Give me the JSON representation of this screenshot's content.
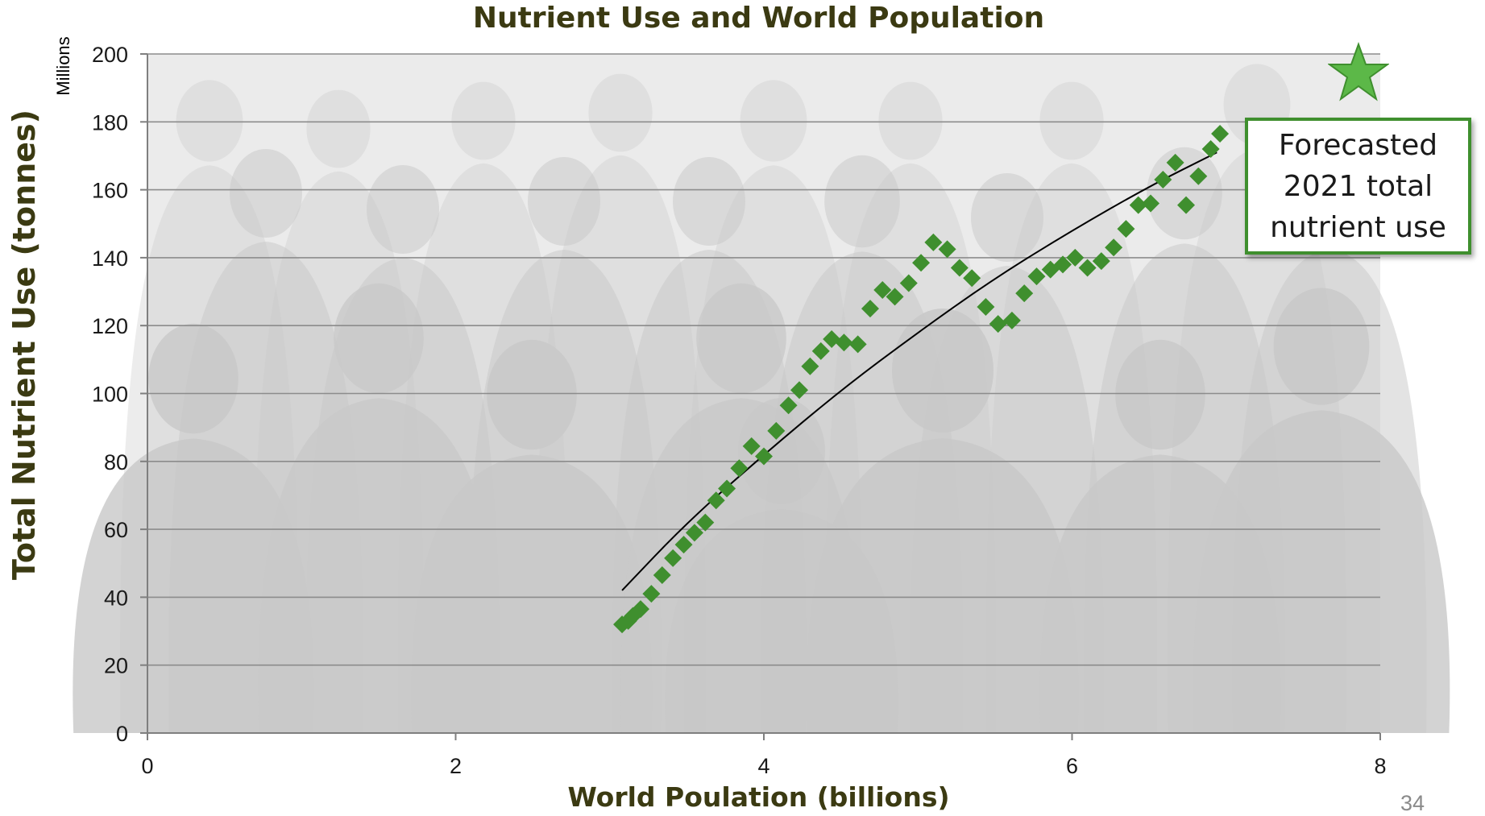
{
  "page": {
    "page_number": "34"
  },
  "callout": {
    "lines": [
      "Forecasted",
      "2021 total",
      "nutrient use"
    ]
  },
  "icons": {
    "callout_marker": "star-icon",
    "star_fill": "#5cb848",
    "star_stroke": "#3f8f2e"
  },
  "colors": {
    "marker": "#3f8f2e",
    "trendline": "#000000",
    "title_text": "#3b3a12",
    "gridline": "#8c8c8c",
    "background_silhouettes": "#c8c8c8"
  },
  "chart_data": {
    "type": "scatter",
    "title": "Nutrient Use and World Population",
    "xlabel": "World Poulation (billions)",
    "ylabel": "Total Nutrient Use (tonnes)",
    "y_units": "Millions",
    "xlim": [
      0,
      8
    ],
    "ylim": [
      0,
      200
    ],
    "x_ticks": [
      0,
      2,
      4,
      6,
      8
    ],
    "y_ticks": [
      0,
      20,
      40,
      60,
      80,
      100,
      120,
      140,
      160,
      180,
      200
    ],
    "grid": "horizontal",
    "marker": "diamond",
    "series": [
      {
        "x": [
          3.08,
          3.12,
          3.15,
          3.2,
          3.27,
          3.34,
          3.41,
          3.48,
          3.55,
          3.62,
          3.69,
          3.76,
          3.84,
          3.92,
          4.0,
          4.08,
          4.16,
          4.23,
          4.3,
          4.37,
          4.44,
          4.52,
          4.61,
          4.69,
          4.77,
          4.85,
          4.94,
          5.02,
          5.1,
          5.19,
          5.27,
          5.35,
          5.44,
          5.52,
          5.61,
          5.69,
          5.77,
          5.86,
          5.94,
          6.02,
          6.1,
          6.19,
          6.27,
          6.35,
          6.43,
          6.51,
          6.59,
          6.67,
          6.74,
          6.82,
          6.9,
          6.96
        ],
        "y": [
          32,
          33,
          34.5,
          36.5,
          41,
          46.5,
          51.5,
          55.5,
          59,
          62,
          68.5,
          72,
          78,
          84.5,
          81.5,
          89,
          96.5,
          101,
          108,
          112.5,
          116,
          115,
          114.5,
          125,
          130.5,
          128.5,
          132.5,
          138.5,
          144.5,
          142.5,
          137,
          134,
          125.5,
          120.5,
          121.5,
          129.5,
          134.5,
          136.5,
          138,
          140,
          137,
          139,
          143,
          148.5,
          155.5,
          156,
          163,
          168,
          155.5,
          164,
          172,
          176.5
        ]
      }
    ],
    "trendline": {
      "type": "power",
      "x": [
        3.08,
        3.5,
        4.0,
        4.5,
        5.0,
        5.5,
        6.0,
        6.5,
        6.94
      ],
      "y": [
        42,
        62,
        82,
        101,
        118,
        134,
        148,
        161,
        171
      ]
    }
  }
}
